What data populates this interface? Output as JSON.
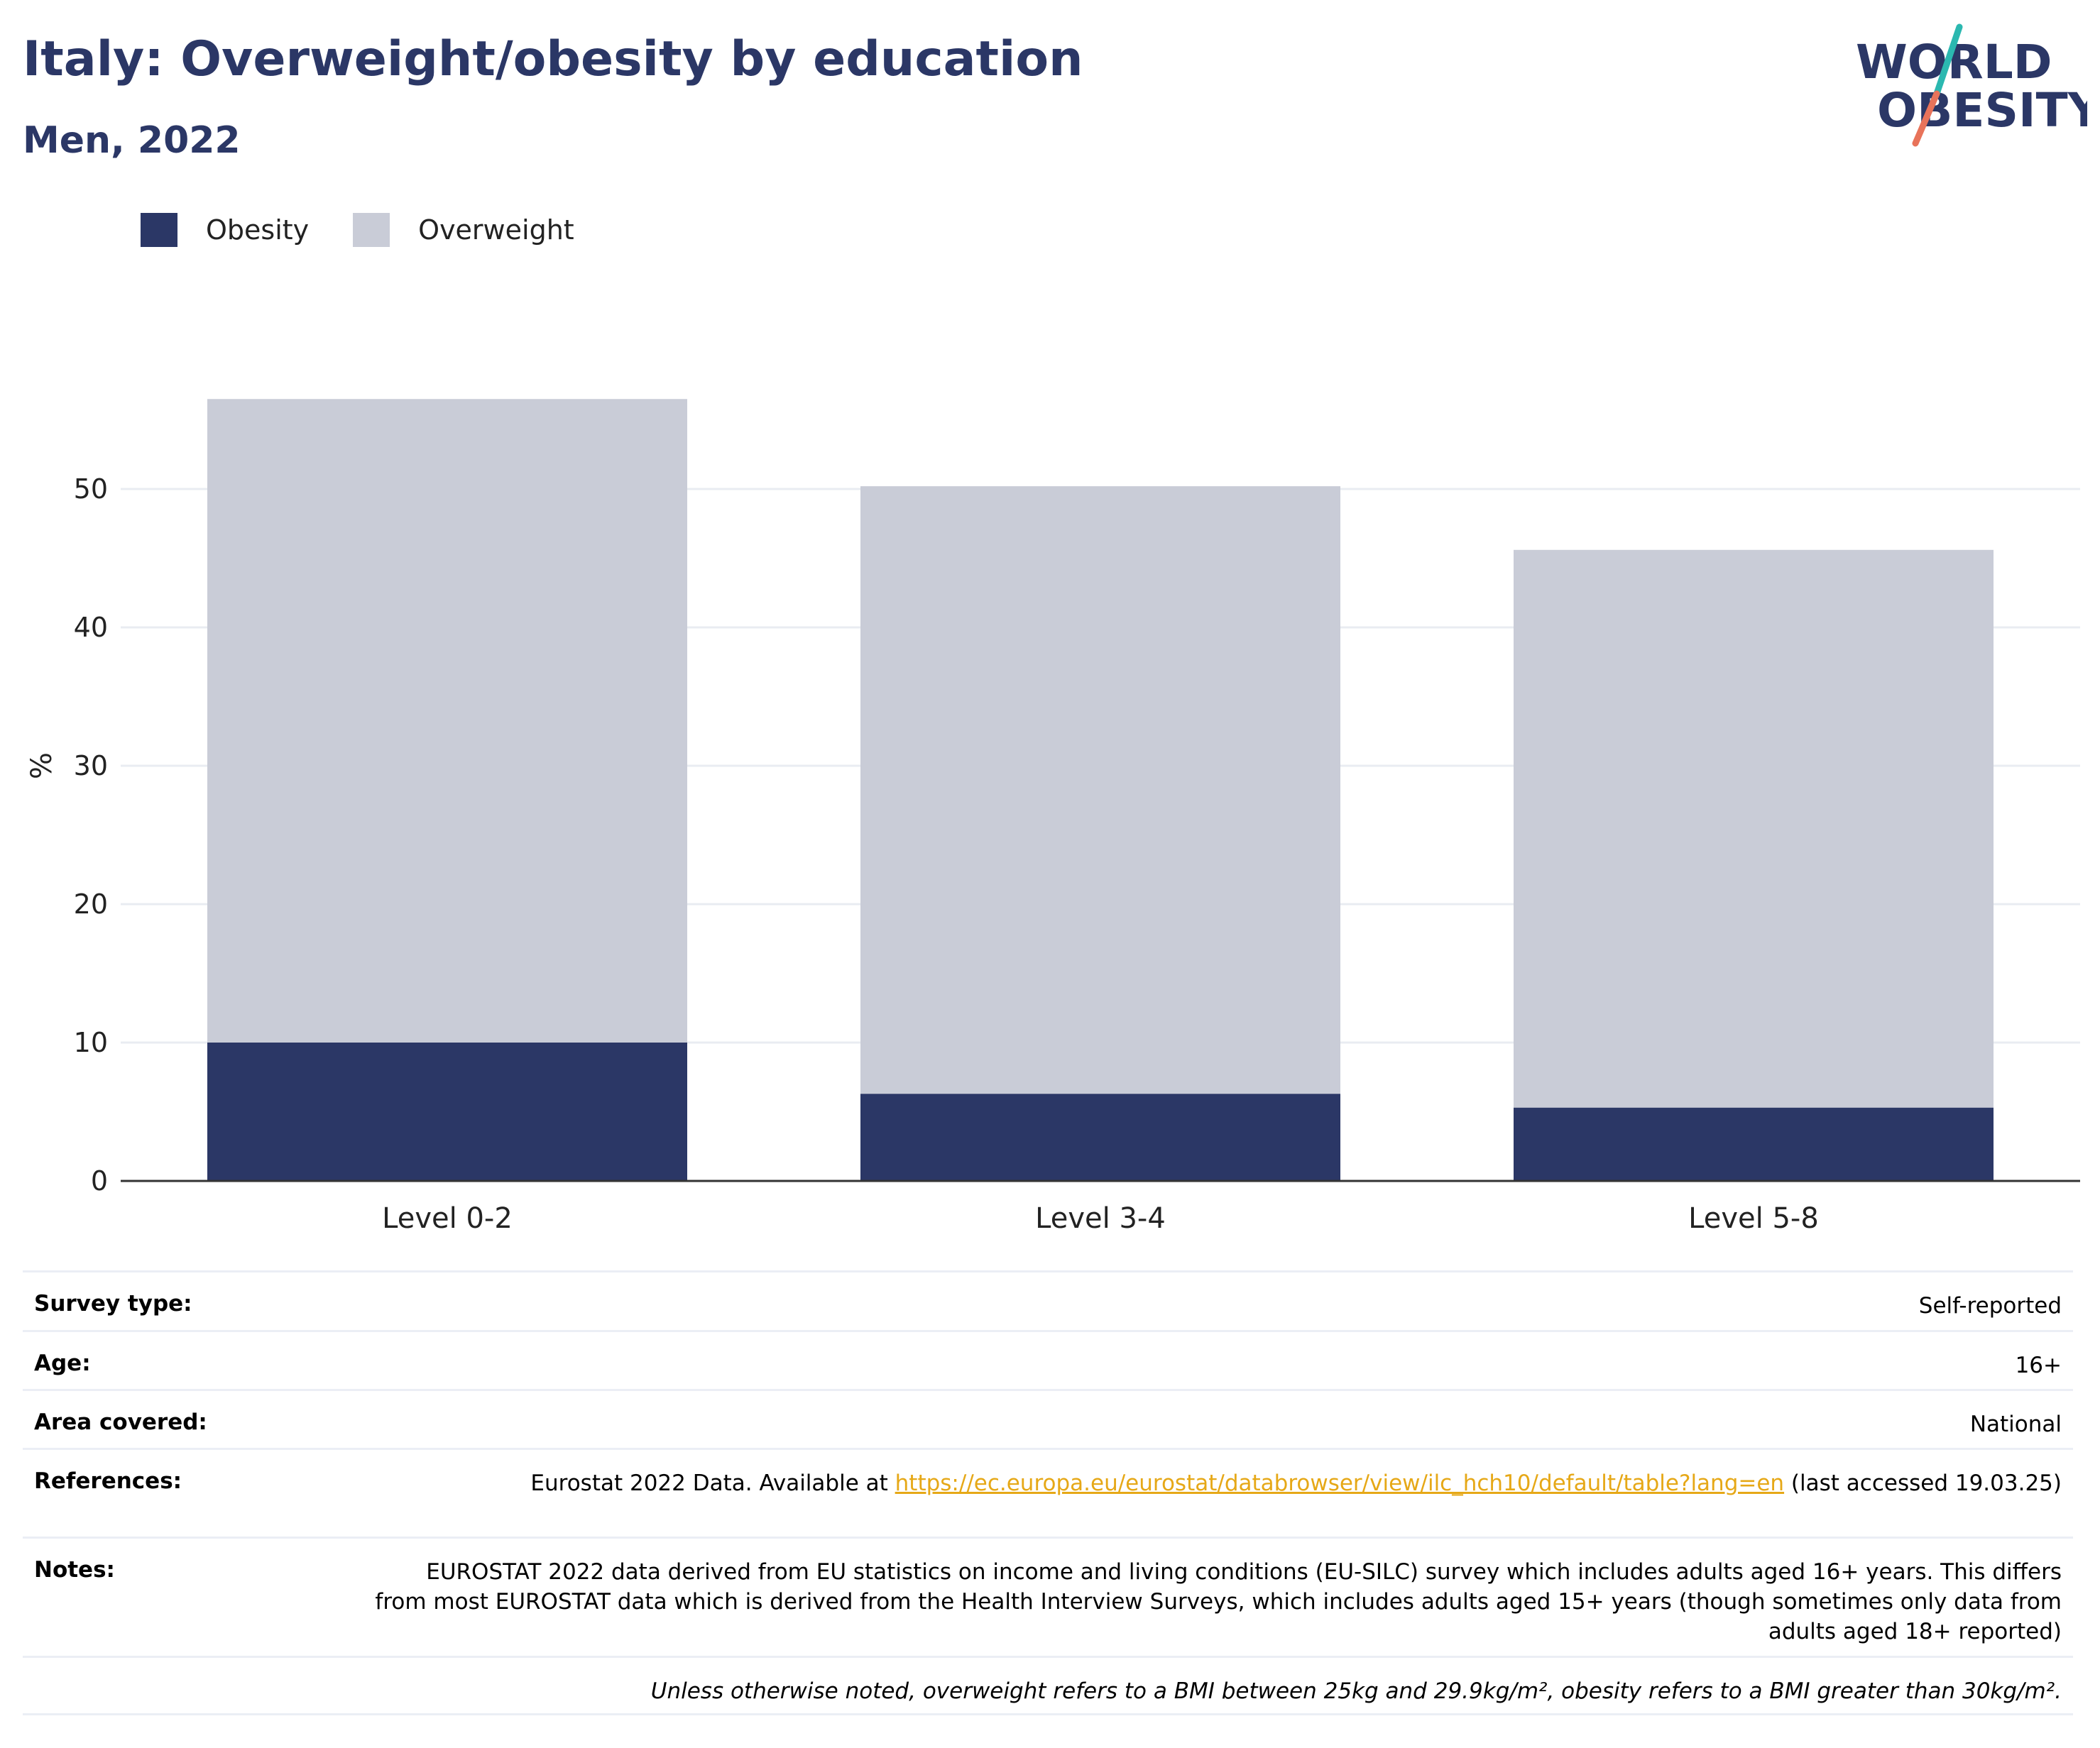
{
  "header": {
    "title": "Italy: Overweight/obesity by education",
    "subtitle": "Men, 2022"
  },
  "logo": {
    "line1": "WORLD",
    "line2": "OBESITY",
    "colors": {
      "text": "#2b3766",
      "slash_top": "#2bb8b0",
      "slash_bottom": "#e8735a"
    }
  },
  "colors": {
    "obesity": "#2b3766",
    "overweight": "#c9ccd7",
    "link": "#e6a817",
    "grid": "#e9ecf2",
    "axis": "#333333"
  },
  "legend": [
    {
      "key": "obesity",
      "label": "Obesity"
    },
    {
      "key": "overweight",
      "label": "Overweight"
    }
  ],
  "chart_data": {
    "type": "bar",
    "stacked": true,
    "categories": [
      "Level 0-2",
      "Level 3-4",
      "Level 5-8"
    ],
    "series": [
      {
        "name": "Obesity",
        "values": [
          10.0,
          6.3,
          5.3
        ]
      },
      {
        "name": "Overweight",
        "values": [
          46.5,
          43.9,
          40.3
        ]
      }
    ],
    "ylabel": "%",
    "ylim": [
      0,
      60
    ],
    "yticks": [
      0,
      10,
      20,
      30,
      40,
      50
    ],
    "grid": true,
    "legend_position": "top-left"
  },
  "info": {
    "survey_type": {
      "label": "Survey type:",
      "value": "Self-reported"
    },
    "age": {
      "label": "Age:",
      "value": "16+"
    },
    "area": {
      "label": "Area covered:",
      "value": "National"
    },
    "references": {
      "label": "References:",
      "prefix": "Eurostat 2022 Data. Available at ",
      "link": "https://ec.europa.eu/eurostat/databrowser/view/ilc_hch10/default/table?lang=en",
      "suffix": " (last accessed 19.03.25)"
    },
    "notes": {
      "label": "Notes:",
      "value": "EUROSTAT 2022 data derived from EU statistics on income and living conditions (EU-SILC) survey which includes adults aged 16+ years. This differs from most EUROSTAT data which is derived from the Health Interview Surveys, which includes adults aged 15+ years (though sometimes only data from adults aged 18+ reported)"
    },
    "footnote": "Unless otherwise noted, overweight refers to a BMI between 25kg and 29.9kg/m², obesity refers to a BMI greater than 30kg/m²."
  }
}
